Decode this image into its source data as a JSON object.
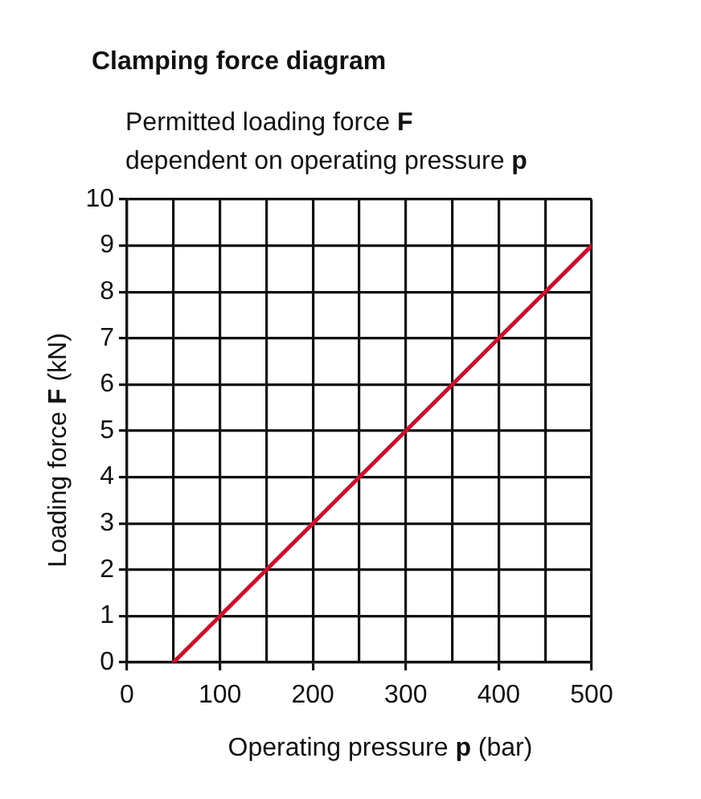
{
  "chart_data": {
    "type": "line",
    "title": "Clamping force diagram",
    "subtitle": "Permitted loading force F\ndependent on operating pressure p",
    "xlabel": "Operating pressure p (bar)",
    "ylabel": "Loading force F (kN)",
    "x": [
      50,
      100,
      150,
      200,
      250,
      300,
      350,
      400,
      450,
      500
    ],
    "series": [
      {
        "color": "#c8102e",
        "values": [
          0,
          1,
          2,
          3,
          4,
          5,
          6,
          7,
          8,
          9
        ]
      }
    ],
    "xlim": [
      0,
      500
    ],
    "ylim": [
      0,
      10
    ],
    "xticks": [
      0,
      {
        "value": 50,
        "label": null
      },
      100,
      {
        "value": 150,
        "label": null
      },
      200,
      {
        "value": 250,
        "label": null
      },
      300,
      {
        "value": 350,
        "label": null
      },
      400,
      {
        "value": 450,
        "label": null
      },
      500
    ],
    "yticks": [
      0,
      1,
      2,
      3,
      4,
      5,
      6,
      7,
      8,
      9,
      10
    ],
    "grid": true,
    "legend": false,
    "marker": "none",
    "line_style": "solid"
  }
}
